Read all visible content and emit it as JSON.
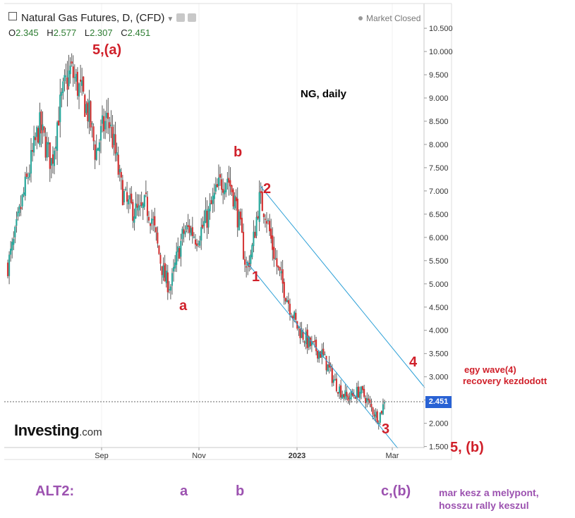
{
  "header": {
    "title": "Natural Gas Futures, D, (CFD)",
    "status": "Market Closed",
    "ohlc": [
      {
        "k": "O",
        "v": "2.345"
      },
      {
        "k": "H",
        "v": "2.577"
      },
      {
        "k": "L",
        "v": "2.307"
      },
      {
        "k": "C",
        "v": "2.451"
      }
    ]
  },
  "brand": {
    "name": "Investing",
    "suffix": ".com"
  },
  "annotations": {
    "title": "NG, daily",
    "waves": {
      "w5a": "5,(a)",
      "wa": "a",
      "wb": "b",
      "w1": "1",
      "w2": "2",
      "w3": "3",
      "w4": "4",
      "w5b": "5, (b)"
    },
    "note": [
      "egy wave(4)",
      "recovery kezdodott"
    ],
    "alt2": {
      "label": "ALT2:",
      "a": "a",
      "b": "b",
      "cb": "c,(b)",
      "note": [
        "mar kesz a melypont,",
        "hosszu rally keszul"
      ]
    }
  },
  "chart_data": {
    "type": "candlestick",
    "x_tick_labels": [
      "Sep",
      "Nov",
      "2023",
      "Mar"
    ],
    "y_ticks": [
      1.5,
      2.0,
      2.5,
      3.0,
      3.5,
      4.0,
      4.5,
      5.0,
      5.5,
      6.0,
      6.5,
      7.0,
      7.5,
      8.0,
      8.5,
      9.0,
      9.5,
      10.0,
      10.5
    ],
    "y_tick_labels": [
      "1.500",
      "2.000",
      "2.500",
      "3.000",
      "3.500",
      "4.000",
      "4.500",
      "5.000",
      "5.500",
      "6.000",
      "6.500",
      "7.000",
      "7.500",
      "8.000",
      "8.500",
      "9.000",
      "9.500",
      "10.000",
      "10.500"
    ],
    "ylim": [
      1.5,
      10.5
    ],
    "last_price": 2.451,
    "last_price_label": "2.451",
    "close_path": [
      5.4,
      5.9,
      6.6,
      7.2,
      7.8,
      8.4,
      8.0,
      7.6,
      8.6,
      9.2,
      9.6,
      9.3,
      9.0,
      8.6,
      7.8,
      8.3,
      8.6,
      7.9,
      7.1,
      6.7,
      6.6,
      6.5,
      6.7,
      6.4,
      5.7,
      5.1,
      4.95,
      5.6,
      6.1,
      6.2,
      6.0,
      6.2,
      6.5,
      6.9,
      7.2,
      7.3,
      6.9,
      6.2,
      5.3,
      5.8,
      6.8,
      6.6,
      5.9,
      5.3,
      4.9,
      4.5,
      4.1,
      3.9,
      3.7,
      3.6,
      3.5,
      3.2,
      2.9,
      2.7,
      2.55,
      2.6,
      2.7,
      2.55,
      2.3,
      2.1,
      2.45
    ],
    "candle_color_up": "#26a69a",
    "candle_color_down": "#d32f2f",
    "channel_color": "#2a9fd6"
  }
}
